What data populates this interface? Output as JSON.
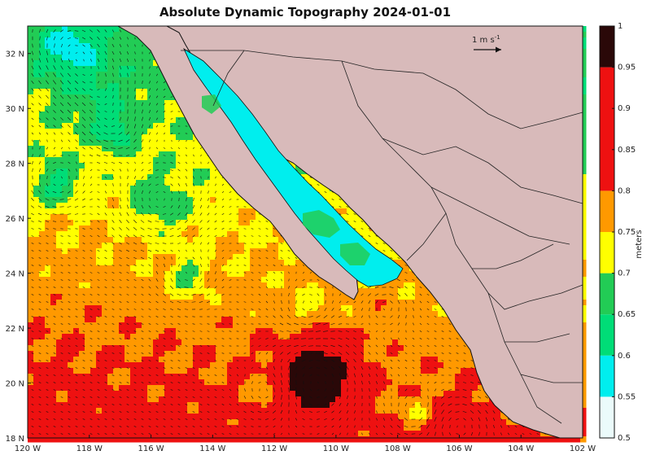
{
  "title": "Absolute Dynamic Topography 2024-01-01",
  "colorbar": {
    "label": "meters",
    "ticks": [
      "0.5",
      "0.55",
      "0.6",
      "0.65",
      "0.7",
      "0.75",
      "0.8",
      "0.85",
      "0.9",
      "0.95",
      "1"
    ],
    "bins": [
      {
        "from": 0.5,
        "to": 0.55,
        "color": "#ebfbfb"
      },
      {
        "from": 0.55,
        "to": 0.6,
        "color": "#00eeee"
      },
      {
        "from": 0.6,
        "to": 0.65,
        "color": "#00dd77"
      },
      {
        "from": 0.65,
        "to": 0.7,
        "color": "#22cc55"
      },
      {
        "from": 0.7,
        "to": 0.75,
        "color": "#ffff00"
      },
      {
        "from": 0.75,
        "to": 0.8,
        "color": "#ff9900"
      },
      {
        "from": 0.8,
        "to": 0.95,
        "color": "#ee1111"
      },
      {
        "from": 0.95,
        "to": 1.0,
        "color": "#2a0808"
      }
    ]
  },
  "scale_arrow": {
    "label_main": "1 m s",
    "label_exp": "-1"
  },
  "axes": {
    "lon_ticks": [
      "120 W",
      "118 W",
      "116 W",
      "114 W",
      "112 W",
      "110 W",
      "108 W",
      "106 W",
      "104 W",
      "102 W"
    ],
    "lat_ticks": [
      "18 N",
      "20 N",
      "22 N",
      "24 N",
      "26 N",
      "28 N",
      "30 N",
      "32 N"
    ],
    "lon_range": [
      -120,
      -102
    ],
    "lat_range": [
      18,
      33
    ]
  },
  "colors": {
    "land": "#d8baba",
    "border": "#222222",
    "gulf_shallow": "#00eeee"
  }
}
